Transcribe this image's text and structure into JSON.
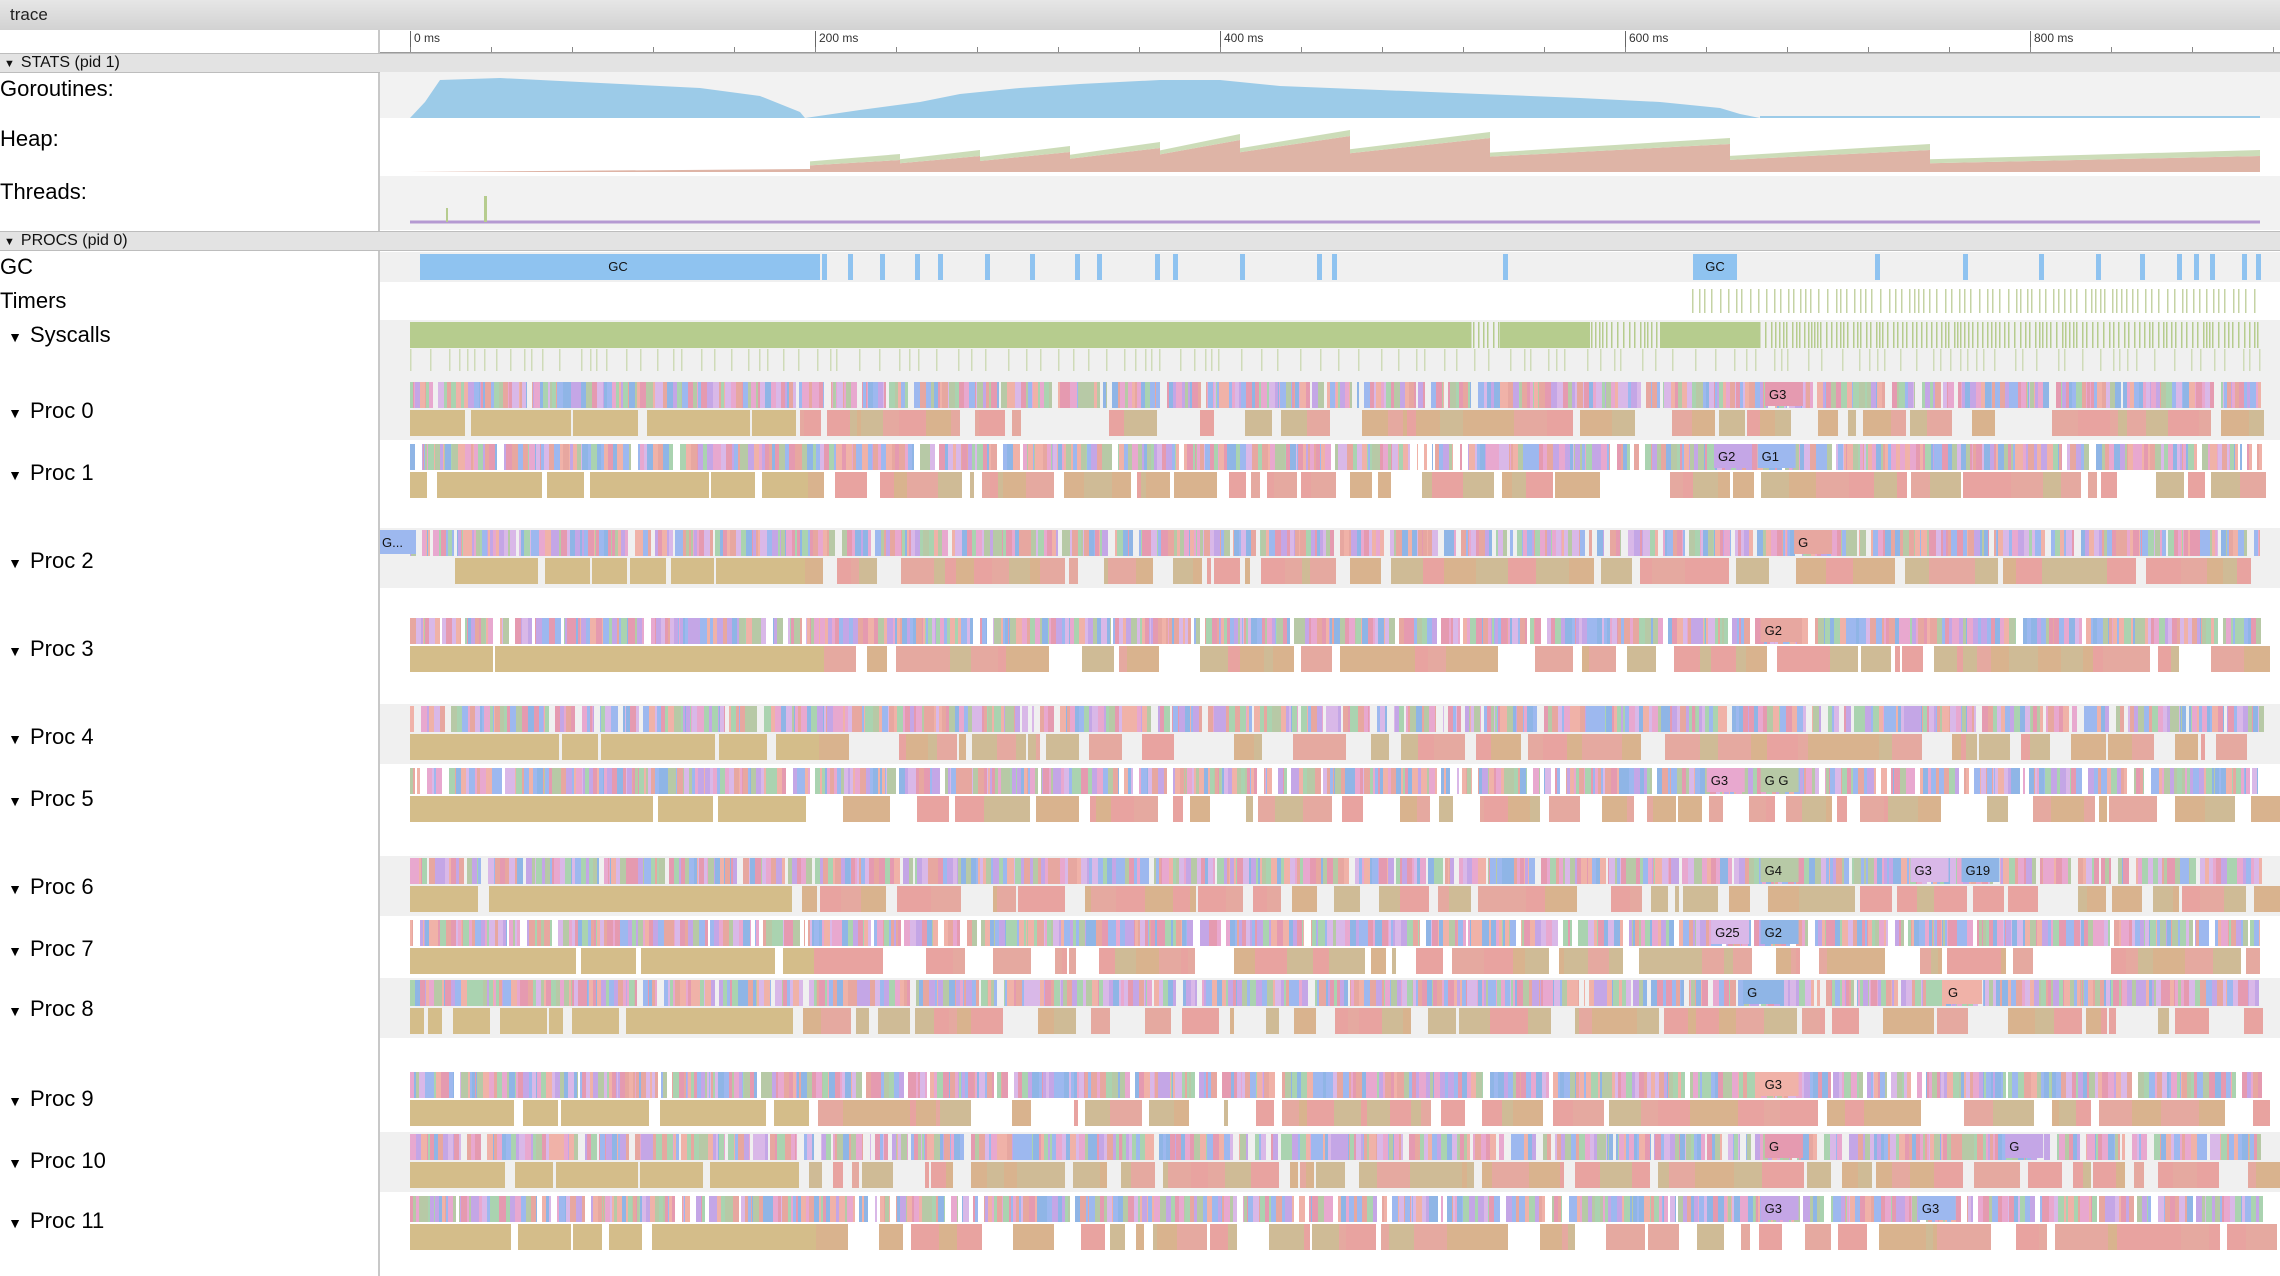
{
  "window": {
    "title": "trace"
  },
  "ruler": {
    "ticks": [
      "0 ms",
      "200 ms",
      "400 ms",
      "600 ms",
      "800 ms"
    ]
  },
  "sections": {
    "stats": "STATS (pid 1)",
    "procs": "PROCS (pid 0)"
  },
  "stats_rows": [
    "Goroutines:",
    "Heap:",
    "Threads:"
  ],
  "special_rows": [
    "GC",
    "Timers",
    "Syscalls"
  ],
  "procs": [
    {
      "label": "Proc 0",
      "slices": [
        "G3"
      ]
    },
    {
      "label": "Proc 1",
      "slices": [
        "G2",
        "G1"
      ]
    },
    {
      "label": "Proc 2",
      "slices": [
        "G...",
        "G"
      ]
    },
    {
      "label": "Proc 3",
      "slices": [
        "G2"
      ]
    },
    {
      "label": "Proc 4",
      "slices": []
    },
    {
      "label": "Proc 5",
      "slices": [
        "G3",
        "G G"
      ]
    },
    {
      "label": "Proc 6",
      "slices": [
        "G4",
        "G3",
        "G19"
      ]
    },
    {
      "label": "Proc 7",
      "slices": [
        "G25",
        "G2"
      ]
    },
    {
      "label": "Proc 8",
      "slices": [
        "G",
        "G"
      ]
    },
    {
      "label": "Proc 9",
      "slices": [
        "G3"
      ]
    },
    {
      "label": "Proc 10",
      "slices": [
        "G",
        "G"
      ]
    },
    {
      "label": "Proc 11",
      "slices": [
        "G3",
        "G3"
      ]
    }
  ],
  "gc_labels": [
    "GC",
    "GC"
  ],
  "colors": {
    "goroutines": "#9ccbe8",
    "heap_alloc": "#deb4a6",
    "heap_next": "#c6d8b0",
    "threads": "#b59ad2",
    "gc": "#8fc3f0",
    "syscall": "#b6cc8e",
    "timer": "#c5d3a4"
  }
}
